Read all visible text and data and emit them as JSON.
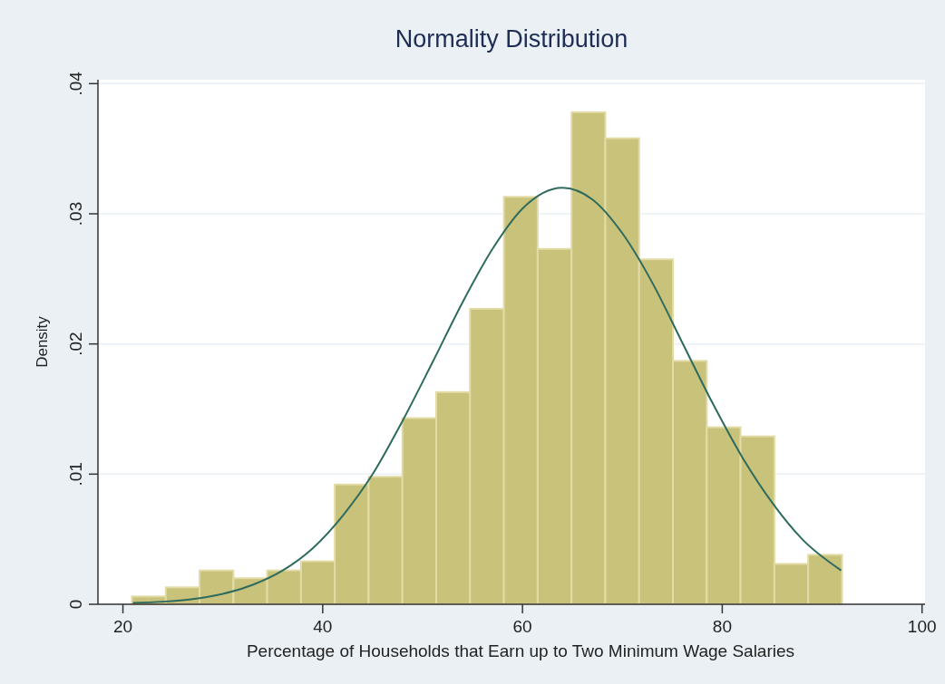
{
  "chart_data": {
    "type": "histogram",
    "title": "Normality Distribution",
    "xlabel": "Percentage of Households that Earn up to Two Minimum Wage Salaries",
    "ylabel": "Density",
    "xlim": [
      17.5,
      100.3
    ],
    "xticks": [
      20,
      40,
      60,
      80,
      100
    ],
    "ylim": [
      0,
      0.0403
    ],
    "yticks": [
      0,
      {
        "value": 0.01,
        "label": ".01"
      },
      {
        "value": 0.02,
        "label": ".02"
      },
      {
        "value": 0.03,
        "label": ".03"
      },
      {
        "value": 0.04,
        "label": ".04"
      }
    ],
    "grid": "y",
    "series": [
      {
        "type": "histogram",
        "color": "#c9c27a",
        "bins": [
          20.9,
          24.29,
          27.67,
          31.06,
          34.44,
          37.83,
          41.21,
          44.6,
          47.98,
          51.37,
          54.75,
          58.14,
          61.52,
          64.91,
          68.29,
          71.68,
          75.06,
          78.45,
          81.83,
          85.22,
          88.6,
          91.99
        ],
        "values": [
          0.0006,
          0.0013,
          0.0026,
          0.002,
          0.0026,
          0.0033,
          0.0092,
          0.0098,
          0.0143,
          0.0163,
          0.0227,
          0.0313,
          0.0273,
          0.0378,
          0.0358,
          0.0265,
          0.0187,
          0.0136,
          0.0129,
          0.0031,
          0.0038
        ]
      },
      {
        "type": "line",
        "color": "#2e6b5e",
        "x": [
          21,
          24,
          27,
          30,
          33,
          36,
          39,
          42,
          45,
          48,
          51,
          54,
          57,
          60,
          64,
          67,
          70,
          73,
          76,
          79,
          82,
          85,
          88,
          91.9
        ],
        "values": [
          0.0001,
          0.0002,
          0.0004,
          0.0008,
          0.0015,
          0.0026,
          0.0043,
          0.0068,
          0.01,
          0.0141,
          0.0186,
          0.0232,
          0.0273,
          0.0304,
          0.032,
          0.0311,
          0.0285,
          0.0247,
          0.0201,
          0.0155,
          0.0113,
          0.0078,
          0.005,
          0.0026
        ]
      }
    ]
  }
}
